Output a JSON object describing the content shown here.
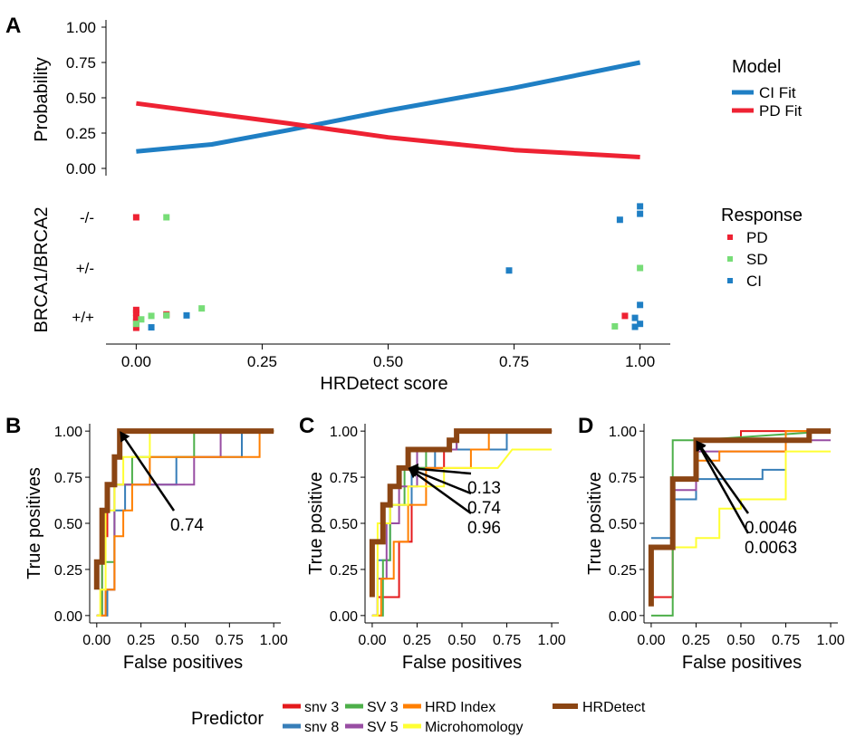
{
  "colors": {
    "pd": "#ee2233",
    "sd": "#77dd77",
    "ci": "#1f7fc4",
    "snv3": "#e41a1c",
    "snv8": "#377eb8",
    "sv3": "#4daf4a",
    "sv5": "#984ea3",
    "hrd_index": "#ff7f00",
    "microhomology": "#ffff33",
    "hrdetect": "#8b4513"
  },
  "panel_labels": [
    "A",
    "B",
    "C",
    "D"
  ],
  "legends": {
    "model": {
      "title": "Model",
      "items": [
        {
          "label": "CI Fit",
          "color": "#1f7fc4"
        },
        {
          "label": "PD Fit",
          "color": "#ee2233"
        }
      ]
    },
    "response": {
      "title": "Response",
      "items": [
        {
          "label": "PD",
          "color": "#ee2233"
        },
        {
          "label": "SD",
          "color": "#77dd77"
        },
        {
          "label": "CI",
          "color": "#1f7fc4"
        }
      ]
    },
    "predictor": {
      "title": "Predictor",
      "items": [
        {
          "label": "snv 3",
          "color": "#e41a1c"
        },
        {
          "label": "snv 8",
          "color": "#377eb8"
        },
        {
          "label": "SV 3",
          "color": "#4daf4a"
        },
        {
          "label": "SV 5",
          "color": "#984ea3"
        },
        {
          "label": "HRD Index",
          "color": "#ff7f00"
        },
        {
          "label": "Microhomology",
          "color": "#ffff33"
        },
        {
          "label": "HRDetect",
          "color": "#8b4513"
        }
      ]
    }
  },
  "chart_data": [
    {
      "type": "line",
      "panel": "A-top",
      "xlim": [
        -0.06,
        1.06
      ],
      "ylim": [
        0,
        1
      ],
      "ylabel": "Probability",
      "yticks": [
        "0.00",
        "0.25",
        "0.50",
        "0.75",
        "1.00"
      ],
      "yticks_values": [
        0,
        0.25,
        0.5,
        0.75,
        1
      ],
      "series": [
        {
          "name": "CI Fit",
          "color": "#1f7fc4",
          "x": [
            0,
            0.15,
            0.3,
            0.5,
            0.75,
            1
          ],
          "y": [
            0.12,
            0.17,
            0.27,
            0.41,
            0.57,
            0.75
          ]
        },
        {
          "name": "PD Fit",
          "color": "#ee2233",
          "x": [
            0,
            0.15,
            0.3,
            0.5,
            0.75,
            1
          ],
          "y": [
            0.46,
            0.39,
            0.32,
            0.22,
            0.13,
            0.08
          ]
        }
      ]
    },
    {
      "type": "scatter",
      "panel": "A-bottom",
      "xlim": [
        -0.06,
        1.06
      ],
      "xlabel": "HRDetect score",
      "ylabel": "BRCA1/BRCA2",
      "categories": [
        "+/+",
        "+/-",
        "-/-"
      ],
      "xticks": [
        "0.00",
        "0.25",
        "0.50",
        "0.75",
        "1.00"
      ],
      "xticks_values": [
        0,
        0.25,
        0.5,
        0.75,
        1
      ],
      "series": [
        {
          "name": "PD",
          "color": "#ee2233",
          "points": [
            [
              0,
              "-/-",
              0
            ],
            [
              0,
              "+/+",
              0.22
            ],
            [
              0,
              "+/+",
              0.1
            ],
            [
              0,
              "+/+",
              0.02
            ],
            [
              0,
              "+/+",
              -0.08
            ],
            [
              0,
              "+/+",
              -0.14
            ],
            [
              0.06,
              "+/+",
              -0.05
            ],
            [
              0.97,
              "+/+",
              -0.02
            ]
          ]
        },
        {
          "name": "SD",
          "color": "#77dd77",
          "points": [
            [
              0.06,
              "-/-",
              0
            ],
            [
              0,
              "+/+",
              0.14
            ],
            [
              0.01,
              "+/+",
              0.05
            ],
            [
              0.03,
              "+/+",
              -0.02
            ],
            [
              0.06,
              "+/+",
              -0.03
            ],
            [
              0.13,
              "+/+",
              -0.17
            ],
            [
              0.95,
              "+/+",
              0.19
            ],
            [
              1,
              "+/-",
              0
            ]
          ]
        },
        {
          "name": "CI",
          "color": "#1f7fc4",
          "points": [
            [
              0.96,
              "-/-",
              0.05
            ],
            [
              1,
              "-/-",
              -0.07
            ],
            [
              1,
              "-/-",
              -0.22
            ],
            [
              0.74,
              "+/-",
              0.05
            ],
            [
              0.03,
              "+/+",
              0.21
            ],
            [
              0.1,
              "+/+",
              -0.03
            ],
            [
              0.99,
              "+/+",
              0.2
            ],
            [
              1,
              "+/+",
              0.14
            ],
            [
              0.99,
              "+/+",
              0.02
            ],
            [
              1,
              "+/+",
              -0.24
            ]
          ]
        }
      ]
    },
    {
      "type": "line",
      "panel": "B",
      "xlabel": "False positives",
      "ylabel": "True positives",
      "xlim": [
        -0.04,
        1.04
      ],
      "ylim": [
        -0.04,
        1.04
      ],
      "ticks": [
        "0.00",
        "0.25",
        "0.50",
        "0.75",
        "1.00"
      ],
      "tick_values": [
        0,
        0.25,
        0.5,
        0.75,
        1
      ],
      "annotations": [
        {
          "text": "0.74",
          "point": [
            0.13,
            1.0
          ]
        }
      ],
      "series": [
        {
          "name": "snv 3",
          "color": "#e41a1c",
          "x": [
            0,
            0.03,
            0.03,
            0.06,
            0.06,
            0.1,
            0.1,
            0.13,
            0.13,
            0.35,
            0.35,
            1
          ],
          "y": [
            0,
            0,
            0.43,
            0.43,
            0.71,
            0.71,
            0.86,
            0.86,
            1,
            1,
            1,
            1
          ]
        },
        {
          "name": "snv 8",
          "color": "#377eb8",
          "x": [
            0,
            0.06,
            0.06,
            0.1,
            0.1,
            0.16,
            0.16,
            0.45,
            0.45,
            0.82,
            0.82,
            1
          ],
          "y": [
            0,
            0,
            0.14,
            0.14,
            0.57,
            0.57,
            0.71,
            0.71,
            0.86,
            0.86,
            1,
            1
          ]
        },
        {
          "name": "SV 3",
          "color": "#4daf4a",
          "x": [
            0,
            0.03,
            0.03,
            0.1,
            0.1,
            0.2,
            0.2,
            0.55,
            0.55,
            1
          ],
          "y": [
            0,
            0,
            0.29,
            0.29,
            0.71,
            0.71,
            0.86,
            0.86,
            1,
            1
          ]
        },
        {
          "name": "SV 5",
          "color": "#984ea3",
          "x": [
            0,
            0.05,
            0.05,
            0.1,
            0.1,
            0.35,
            0.35,
            0.55,
            0.55,
            0.7,
            0.7,
            1
          ],
          "y": [
            0,
            0,
            0.14,
            0.14,
            0.71,
            0.71,
            0.71,
            0.71,
            0.86,
            0.86,
            1,
            1
          ]
        },
        {
          "name": "HRD Index",
          "color": "#ff7f00",
          "x": [
            0,
            0.05,
            0.05,
            0.1,
            0.1,
            0.15,
            0.15,
            0.2,
            0.2,
            0.3,
            0.3,
            0.92,
            0.92,
            1
          ],
          "y": [
            0,
            0,
            0.14,
            0.14,
            0.43,
            0.43,
            0.57,
            0.57,
            0.71,
            0.71,
            0.86,
            0.86,
            1,
            1
          ]
        },
        {
          "name": "Microhomology",
          "color": "#ffff33",
          "x": [
            0,
            0.02,
            0.02,
            0.05,
            0.05,
            0.1,
            0.1,
            0.15,
            0.15,
            0.3,
            0.3,
            1
          ],
          "y": [
            0,
            0,
            0.14,
            0.14,
            0.57,
            0.57,
            0.71,
            0.71,
            0.86,
            0.86,
            1,
            1
          ]
        },
        {
          "name": "HRDetect",
          "color": "#8b4513",
          "x": [
            0,
            0,
            0.03,
            0.03,
            0.06,
            0.06,
            0.1,
            0.1,
            0.13,
            0.13,
            1
          ],
          "y": [
            0.14,
            0.29,
            0.29,
            0.57,
            0.57,
            0.71,
            0.71,
            0.86,
            0.86,
            1,
            1
          ]
        }
      ]
    },
    {
      "type": "line",
      "panel": "C",
      "xlabel": "False positives",
      "ylabel": "True positive",
      "xlim": [
        -0.04,
        1.04
      ],
      "ylim": [
        -0.04,
        1.04
      ],
      "ticks": [
        "0.00",
        "0.25",
        "0.50",
        "0.75",
        "1.00"
      ],
      "tick_values": [
        0,
        0.25,
        0.5,
        0.75,
        1
      ],
      "annotations": [
        {
          "text": "0.13",
          "point": [
            0.2,
            0.8
          ]
        },
        {
          "text": "0.74",
          "point": [
            0.2,
            0.8
          ]
        },
        {
          "text": "0.96",
          "point": [
            0.2,
            0.8
          ]
        }
      ],
      "series": [
        {
          "name": "snv 3",
          "color": "#e41a1c",
          "x": [
            0,
            0.03,
            0.03,
            0.15,
            0.15,
            0.22,
            0.22,
            0.4,
            0.4,
            0.47,
            0.47,
            1
          ],
          "y": [
            0,
            0,
            0.1,
            0.1,
            0.4,
            0.4,
            0.8,
            0.8,
            0.9,
            0.9,
            1,
            1
          ]
        },
        {
          "name": "snv 8",
          "color": "#377eb8",
          "x": [
            0,
            0.03,
            0.03,
            0.1,
            0.1,
            0.22,
            0.22,
            0.35,
            0.35,
            0.75,
            0.75,
            1
          ],
          "y": [
            0,
            0,
            0.3,
            0.3,
            0.6,
            0.6,
            0.8,
            0.8,
            0.9,
            0.9,
            1,
            1
          ]
        },
        {
          "name": "SV 3",
          "color": "#4daf4a",
          "x": [
            0,
            0.06,
            0.06,
            0.1,
            0.1,
            0.18,
            0.18,
            0.3,
            0.3,
            0.47,
            0.47,
            1
          ],
          "y": [
            0,
            0,
            0.3,
            0.3,
            0.6,
            0.6,
            0.8,
            0.8,
            0.9,
            0.9,
            1,
            1
          ]
        },
        {
          "name": "SV 5",
          "color": "#984ea3",
          "x": [
            0,
            0.03,
            0.03,
            0.08,
            0.08,
            0.15,
            0.15,
            0.25,
            0.25,
            0.47,
            0.47,
            1
          ],
          "y": [
            0,
            0,
            0.2,
            0.2,
            0.5,
            0.5,
            0.7,
            0.7,
            0.9,
            0.9,
            1,
            1
          ]
        },
        {
          "name": "HRD Index",
          "color": "#ff7f00",
          "x": [
            0,
            0.05,
            0.05,
            0.12,
            0.12,
            0.2,
            0.2,
            0.3,
            0.3,
            0.55,
            0.55,
            0.65,
            0.65,
            1
          ],
          "y": [
            0,
            0,
            0.2,
            0.2,
            0.4,
            0.4,
            0.6,
            0.6,
            0.8,
            0.8,
            0.9,
            0.9,
            1,
            1
          ]
        },
        {
          "name": "Microhomology",
          "color": "#ffff33",
          "x": [
            0,
            0.03,
            0.03,
            0.1,
            0.1,
            0.2,
            0.2,
            0.4,
            0.4,
            0.7,
            0.7,
            0.78,
            0.78,
            1
          ],
          "y": [
            0,
            0,
            0.5,
            0.5,
            0.6,
            0.6,
            0.7,
            0.7,
            0.8,
            0.8,
            0.8,
            0.9,
            0.9,
            0.9
          ]
        },
        {
          "name": "HRDetect",
          "color": "#8b4513",
          "x": [
            0,
            0,
            0.06,
            0.06,
            0.1,
            0.1,
            0.15,
            0.15,
            0.2,
            0.2,
            0.27,
            0.27,
            0.43,
            0.43,
            0.47,
            0.47,
            1
          ],
          "y": [
            0.1,
            0.4,
            0.4,
            0.6,
            0.6,
            0.7,
            0.7,
            0.8,
            0.8,
            0.9,
            0.9,
            0.9,
            0.9,
            0.95,
            0.95,
            1,
            1
          ]
        }
      ]
    },
    {
      "type": "line",
      "panel": "D",
      "xlabel": "False positives",
      "ylabel": "True positive",
      "xlim": [
        -0.04,
        1.04
      ],
      "ylim": [
        -0.04,
        1.04
      ],
      "ticks": [
        "0.00",
        "0.25",
        "0.50",
        "0.75",
        "1.00"
      ],
      "tick_values": [
        0,
        0.25,
        0.5,
        0.75,
        1
      ],
      "annotations": [
        {
          "text": "0.0046",
          "point": [
            0.25,
            0.95
          ]
        },
        {
          "text": "0.0063",
          "point": [
            0.25,
            0.95
          ]
        }
      ],
      "series": [
        {
          "name": "snv 3",
          "color": "#e41a1c",
          "x": [
            0,
            0.12,
            0.12,
            0.25,
            0.25,
            0.5,
            0.5,
            0.62,
            0.62,
            1
          ],
          "y": [
            0.1,
            0.1,
            0.74,
            0.74,
            0.95,
            0.95,
            1,
            1,
            1,
            1
          ]
        },
        {
          "name": "snv 8",
          "color": "#377eb8",
          "x": [
            0,
            0.12,
            0.12,
            0.25,
            0.25,
            0.5,
            0.5,
            0.62,
            0.62,
            0.75,
            0.75,
            0.88,
            0.88,
            1
          ],
          "y": [
            0.42,
            0.42,
            0.63,
            0.63,
            0.74,
            0.74,
            0.74,
            0.74,
            0.79,
            0.79,
            0.95,
            0.95,
            1,
            1
          ]
        },
        {
          "name": "SV 3",
          "color": "#4daf4a",
          "x": [
            0,
            0.12,
            0.12,
            0.12,
            0.12,
            0.25,
            0.25,
            1
          ],
          "y": [
            0,
            0,
            0,
            0.95,
            0.95,
            0.95,
            0.95,
            1
          ]
        },
        {
          "name": "SV 5",
          "color": "#984ea3",
          "x": [
            0,
            0.12,
            0.12,
            0.25,
            0.25,
            0.75,
            0.75,
            0.88,
            0.88,
            1
          ],
          "y": [
            0.37,
            0.37,
            0.68,
            0.68,
            0.89,
            0.89,
            0.95,
            0.95,
            0.95,
            0.95
          ]
        },
        {
          "name": "HRD Index",
          "color": "#ff7f00",
          "x": [
            0,
            0.12,
            0.12,
            0.25,
            0.25,
            0.38,
            0.38,
            0.5,
            0.5,
            0.75,
            0.75,
            1
          ],
          "y": [
            0.37,
            0.37,
            0.74,
            0.74,
            0.84,
            0.84,
            0.89,
            0.89,
            0.89,
            0.89,
            1,
            1
          ]
        },
        {
          "name": "Microhomology",
          "color": "#ffff33",
          "x": [
            0,
            0.12,
            0.12,
            0.25,
            0.25,
            0.38,
            0.38,
            0.5,
            0.5,
            0.75,
            0.75,
            1
          ],
          "y": [
            0.37,
            0.37,
            0.37,
            0.37,
            0.42,
            0.42,
            0.58,
            0.58,
            0.63,
            0.63,
            0.89,
            0.89
          ]
        },
        {
          "name": "HRDetect",
          "color": "#8b4513",
          "x": [
            0,
            0,
            0.05,
            0.05,
            0.12,
            0.12,
            0.25,
            0.25,
            0.62,
            0.62,
            0.88,
            0.88,
            1
          ],
          "y": [
            0.05,
            0.37,
            0.37,
            0.37,
            0.37,
            0.74,
            0.74,
            0.95,
            0.95,
            0.95,
            0.95,
            1,
            1
          ]
        }
      ]
    }
  ]
}
